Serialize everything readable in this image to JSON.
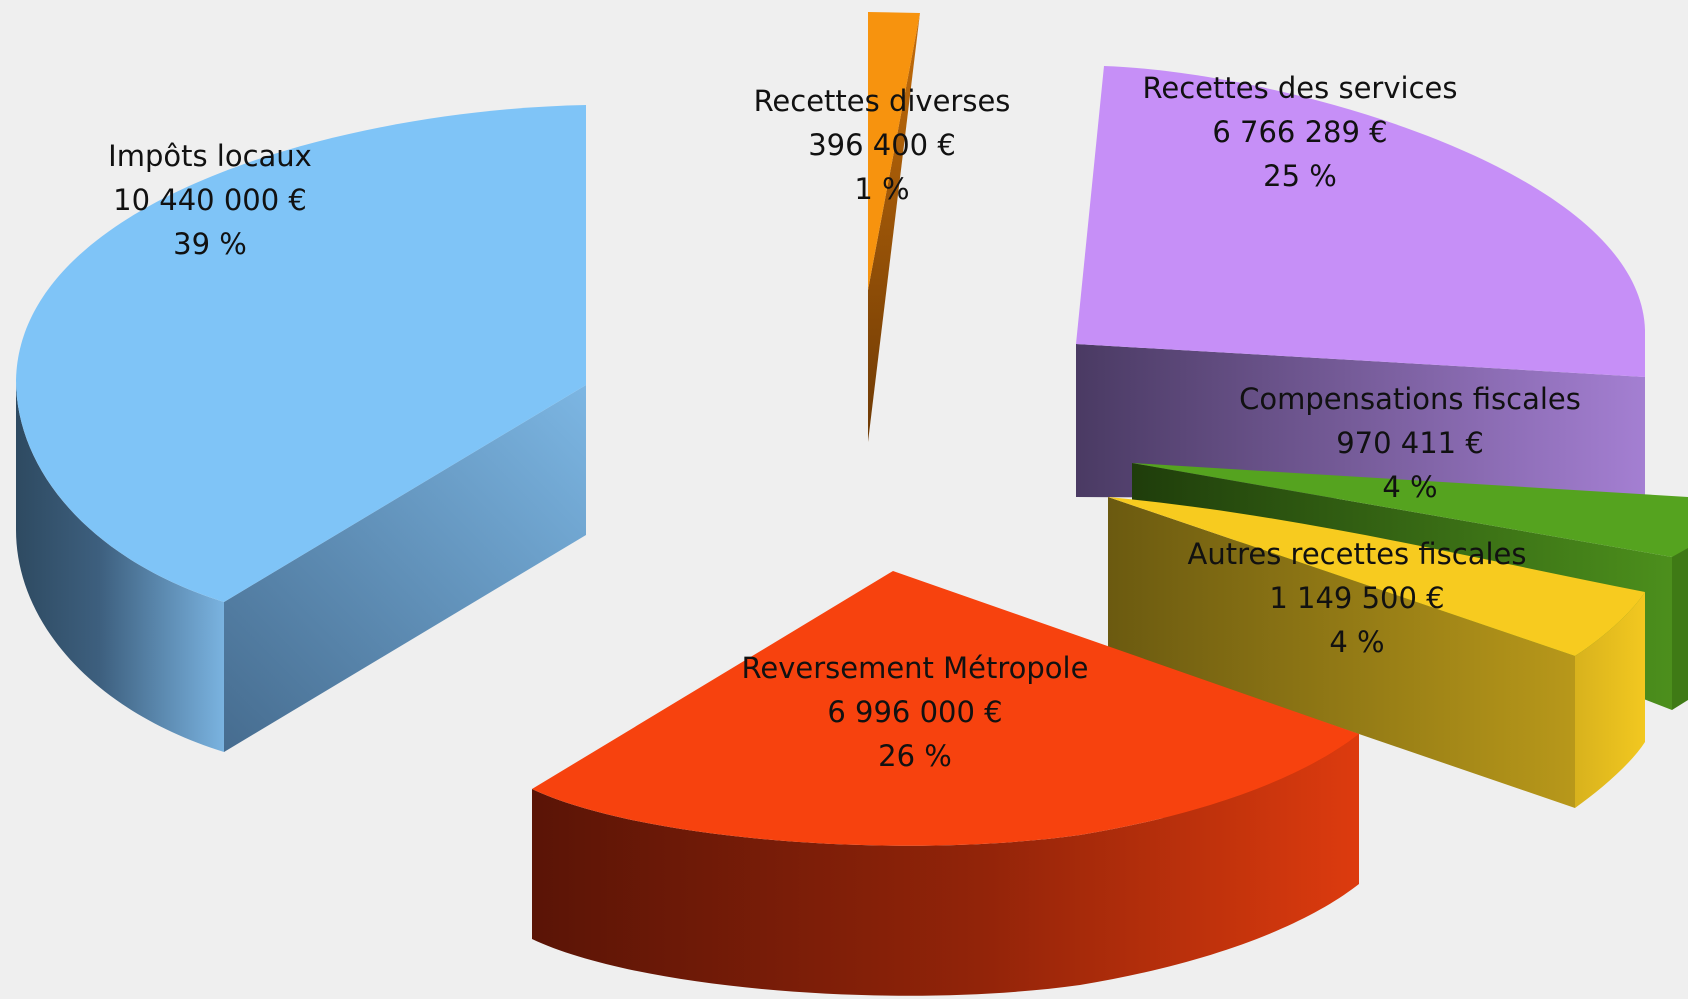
{
  "chart_data": {
    "type": "pie",
    "style": "3d-exploded",
    "title": "",
    "legend": "none",
    "slices": [
      {
        "name": "Impôts locaux",
        "amount": "10 440 000 €",
        "percent": "39 %",
        "value": 10440000,
        "color": "#7fc4f7"
      },
      {
        "name": "Recettes diverses",
        "amount": "396 400 €",
        "percent": "1 %",
        "value": 396400,
        "color": "#f7930e"
      },
      {
        "name": "Recettes des services",
        "amount": "6 766 289 €",
        "percent": "25 %",
        "value": 6766289,
        "color": "#c68ff7"
      },
      {
        "name": "Compensations fiscales",
        "amount": "970 411 €",
        "percent": "4 %",
        "value": 970411,
        "color": "#55a31f"
      },
      {
        "name": "Autres recettes fiscales",
        "amount": "1 149 500 €",
        "percent": "4 %",
        "value": 1149500,
        "color": "#f7cb1f"
      },
      {
        "name": "Reversement Métropole",
        "amount": "6 996 000 €",
        "percent": "26 %",
        "value": 6996000,
        "color": "#f7420e"
      }
    ]
  }
}
